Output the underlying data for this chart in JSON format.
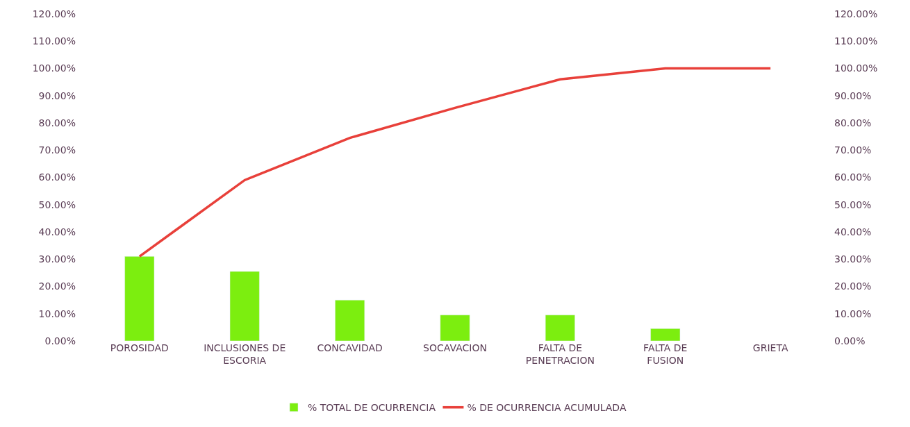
{
  "chart_data": {
    "type": "bar",
    "categories": [
      "POROSIDAD",
      "INCLUSIONES DE ESCORIA",
      "CONCAVIDAD",
      "SOCAVACION",
      "FALTA DE PENETRACION",
      "FALTA DE FUSION",
      "GRIETA"
    ],
    "series": [
      {
        "name": "% TOTAL DE OCURRENCIA",
        "color": "#7cee0f",
        "values": [
          31,
          25.5,
          15,
          9.5,
          9.5,
          4.5,
          null
        ]
      },
      {
        "name": "% DE OCURRENCIA ACUMULADA",
        "type": "line",
        "axis": "y2",
        "color": "#e8403a",
        "values": [
          31,
          59,
          74.5,
          85.5,
          96,
          100,
          100
        ]
      }
    ],
    "ylim": [
      0,
      120
    ],
    "yticks": [
      {
        "value": 0,
        "label": "0.00%"
      },
      {
        "value": 10,
        "label": "10.00%"
      },
      {
        "value": 20,
        "label": "20.00%"
      },
      {
        "value": 30,
        "label": "30.00%"
      },
      {
        "value": 40,
        "label": "40.00%"
      },
      {
        "value": 50,
        "label": "50.00%"
      },
      {
        "value": 60,
        "label": "60.00%"
      },
      {
        "value": 70,
        "label": "70.00%"
      },
      {
        "value": 80,
        "label": "80.00%"
      },
      {
        "value": 90,
        "label": "90.00%"
      },
      {
        "value": 100,
        "label": "100.00%"
      },
      {
        "value": 110,
        "label": "110.00%"
      },
      {
        "value": 120,
        "label": "120.00%"
      }
    ],
    "y2lim": [
      0,
      120
    ],
    "y2ticks": [
      {
        "value": 0,
        "label": "0.00%"
      },
      {
        "value": 10,
        "label": "10.00%"
      },
      {
        "value": 20,
        "label": "20.00%"
      },
      {
        "value": 30,
        "label": "30.00%"
      },
      {
        "value": 40,
        "label": "40.00%"
      },
      {
        "value": 50,
        "label": "50.00%"
      },
      {
        "value": 60,
        "label": "60.00%"
      },
      {
        "value": 70,
        "label": "70.00%"
      },
      {
        "value": 80,
        "label": "80.00%"
      },
      {
        "value": 90,
        "label": "90.00%"
      },
      {
        "value": 100,
        "label": "100.00%"
      },
      {
        "value": 110,
        "label": "110.00%"
      },
      {
        "value": 120,
        "label": "120.00%"
      }
    ],
    "legend": "bottom"
  }
}
